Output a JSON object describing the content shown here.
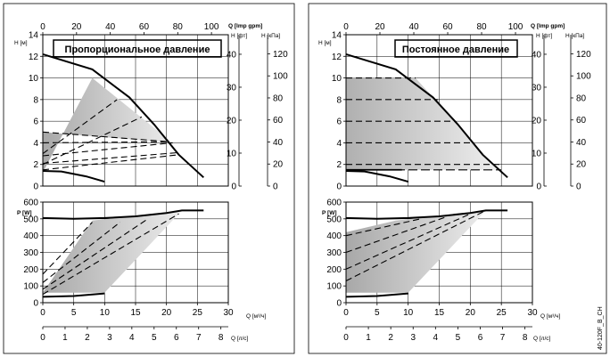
{
  "chart_data": [
    {
      "type": "line",
      "title": "Пропорциональное давление",
      "ylabel": "H [м]",
      "xlabel": "Q [м³/ч]",
      "top_axis_label": "Q [Imp gpm]",
      "right_axis_1_label": "H [фт]",
      "right_axis_2_label": "H [кПа]",
      "ylim": [
        0,
        14
      ],
      "xlim": [
        0,
        30
      ],
      "top_ticks": [
        "0",
        "20",
        "40",
        "60",
        "80",
        "100"
      ],
      "right_ft_ticks": [
        "0",
        "10",
        "20",
        "30",
        "40"
      ],
      "right_kpa_ticks": [
        "0",
        "20",
        "40",
        "60",
        "80",
        "100",
        "120"
      ],
      "max_curve": [
        [
          0,
          12.2
        ],
        [
          8,
          10.8
        ],
        [
          14,
          8.2
        ],
        [
          18,
          5.7
        ],
        [
          22,
          2.9
        ],
        [
          26,
          0.8
        ]
      ],
      "min_curve": [
        [
          0,
          1.4
        ],
        [
          3,
          1.35
        ],
        [
          7,
          0.9
        ],
        [
          10,
          0.4
        ]
      ],
      "region": [
        [
          0,
          1.25
        ],
        [
          8,
          10
        ],
        [
          21,
          4
        ],
        [
          0,
          5
        ]
      ],
      "dashed_lines": [
        [
          [
            0,
            5
          ],
          [
            20.5,
            4.1
          ]
        ],
        [
          [
            0,
            4
          ],
          [
            20.5,
            4.1
          ]
        ],
        [
          [
            0,
            2.8
          ],
          [
            21,
            4
          ]
        ],
        [
          [
            0,
            2.1
          ],
          [
            22,
            3.1
          ]
        ],
        [
          [
            0,
            1.5
          ],
          [
            22,
            2.9
          ]
        ],
        [
          [
            0,
            3
          ],
          [
            12,
            8
          ]
        ],
        [
          [
            0,
            2
          ],
          [
            16,
            6.4
          ]
        ]
      ]
    },
    {
      "type": "line",
      "ylabel": "P [W]",
      "xlabel": "Q [м³/ч]",
      "xlabel2": "Q [л/с]",
      "ylim": [
        0,
        600
      ],
      "xlim": [
        0,
        30
      ],
      "x_ticks": [
        "0",
        "5",
        "10",
        "15",
        "20",
        "25",
        "30"
      ],
      "ls_ticks": [
        "0",
        "1",
        "2",
        "3",
        "4",
        "5",
        "6",
        "7",
        "8"
      ],
      "y_ticks": [
        "0",
        "100",
        "200",
        "300",
        "400",
        "500",
        "600"
      ],
      "max_curve": [
        [
          0,
          505
        ],
        [
          5,
          500
        ],
        [
          10,
          505
        ],
        [
          15,
          515
        ],
        [
          20,
          535
        ],
        [
          22.5,
          550
        ],
        [
          26,
          550
        ]
      ],
      "min_curve": [
        [
          0,
          35
        ],
        [
          5,
          40
        ],
        [
          10,
          55
        ]
      ],
      "region": [
        [
          0,
          60
        ],
        [
          8,
          490
        ],
        [
          22.5,
          550
        ],
        [
          10,
          60
        ]
      ],
      "dashed_lines": [
        [
          [
            0,
            170
          ],
          [
            8,
            480
          ]
        ],
        [
          [
            0,
            120
          ],
          [
            12.5,
            480
          ]
        ],
        [
          [
            0,
            80
          ],
          [
            17,
            500
          ]
        ],
        [
          [
            0,
            50
          ],
          [
            22,
            530
          ]
        ]
      ]
    },
    {
      "type": "line",
      "title": "Постоянное давление",
      "ylabel": "H [м]",
      "xlabel": "Q [м³/ч]",
      "top_axis_label": "Q [Imp gpm]",
      "right_axis_1_label": "H [фт]",
      "right_axis_2_label": "H [кПа]",
      "ylim": [
        0,
        14
      ],
      "xlim": [
        0,
        30
      ],
      "top_ticks": [
        "0",
        "20",
        "40",
        "60",
        "80",
        "100"
      ],
      "right_ft_ticks": [
        "0",
        "10",
        "20",
        "30",
        "40"
      ],
      "right_kpa_ticks": [
        "0",
        "20",
        "40",
        "60",
        "80",
        "100",
        "120"
      ],
      "max_curve": [
        [
          0,
          12.2
        ],
        [
          8,
          10.8
        ],
        [
          14,
          8.2
        ],
        [
          18,
          5.7
        ],
        [
          22,
          2.9
        ],
        [
          26,
          0.8
        ]
      ],
      "min_curve": [
        [
          0,
          1.4
        ],
        [
          3,
          1.35
        ],
        [
          7,
          0.9
        ],
        [
          10,
          0.4
        ]
      ],
      "levels": [
        10,
        8,
        6,
        4,
        2,
        1.5
      ]
    },
    {
      "type": "line",
      "ylabel": "P [W]",
      "xlabel": "Q [м³/ч]",
      "xlabel2": "Q [л/с]",
      "ylim": [
        0,
        600
      ],
      "xlim": [
        0,
        30
      ],
      "x_ticks": [
        "0",
        "5",
        "10",
        "15",
        "20",
        "25",
        "30"
      ],
      "ls_ticks": [
        "0",
        "1",
        "2",
        "3",
        "4",
        "5",
        "6",
        "7",
        "8"
      ],
      "y_ticks": [
        "0",
        "100",
        "200",
        "300",
        "400",
        "500",
        "600"
      ],
      "max_curve": [
        [
          0,
          505
        ],
        [
          5,
          500
        ],
        [
          10,
          505
        ],
        [
          15,
          515
        ],
        [
          20,
          535
        ],
        [
          22.5,
          550
        ],
        [
          26,
          550
        ]
      ],
      "min_curve": [
        [
          0,
          35
        ],
        [
          5,
          40
        ],
        [
          10,
          55
        ]
      ],
      "region": [
        [
          0,
          60
        ],
        [
          0,
          420
        ],
        [
          8,
          490
        ],
        [
          22.5,
          550
        ],
        [
          10,
          60
        ]
      ],
      "dashed_lines": [
        [
          [
            0,
            400
          ],
          [
            12,
            500
          ]
        ],
        [
          [
            0,
            300
          ],
          [
            16,
            510
          ]
        ],
        [
          [
            0,
            200
          ],
          [
            20,
            530
          ]
        ],
        [
          [
            0,
            130
          ],
          [
            22.5,
            550
          ]
        ]
      ]
    }
  ],
  "footer_code": "40-120F_B_CH"
}
